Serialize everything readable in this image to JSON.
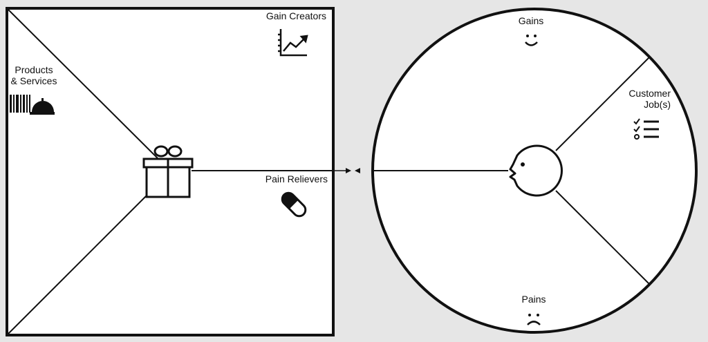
{
  "value_map": {
    "gain_creators": "Gain Creators",
    "products_services_line1": "Products",
    "products_services_line2": "& Services",
    "pain_relievers": "Pain Relievers"
  },
  "customer_profile": {
    "gains": "Gains",
    "customer_jobs_line1": "Customer",
    "customer_jobs_line2": "Job(s)",
    "pains": "Pains"
  },
  "icons": {
    "value_center": "gift-icon",
    "customer_center": "face-icon",
    "gain_creators": "growth-chart-icon",
    "products_services": "barcode-and-bell-icon",
    "pain_relievers": "pill-icon",
    "gains": "smile-icon",
    "customer_jobs": "checklist-icon",
    "pains": "frown-icon"
  },
  "colors": {
    "background": "#e6e6e6",
    "canvas": "#ffffff",
    "stroke": "#111111"
  }
}
